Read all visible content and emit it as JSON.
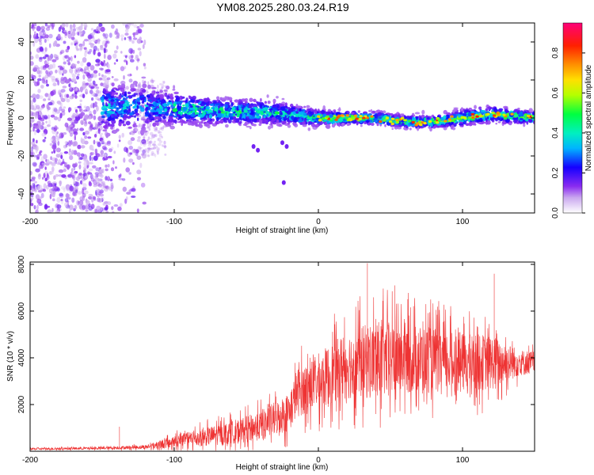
{
  "chart_data": [
    {
      "type": "heatmap",
      "title": "YM08.2025.280.03.24.R19",
      "xlabel": "Height of straight line (km)",
      "ylabel": "Frequency (Hz)",
      "xlim": [
        -200,
        150
      ],
      "ylim": [
        -50,
        50
      ],
      "xticks": [
        -200,
        -100,
        0,
        100
      ],
      "yticks": [
        -40,
        -20,
        0,
        20,
        40
      ],
      "colorbar": {
        "label": "Normalized spectral amplitude",
        "range": [
          0,
          0.95
        ],
        "ticks": [
          0.0,
          0.2,
          0.4,
          0.6,
          0.8
        ],
        "colors": [
          "#ffffff",
          "#b58be8",
          "#7a1cf5",
          "#0000ff",
          "#00c8ff",
          "#00ff66",
          "#c8ff00",
          "#ffd000",
          "#ff7f00",
          "#ff0000",
          "#ff0066"
        ]
      },
      "ridge": {
        "x": [
          -150,
          -120,
          -100,
          -80,
          -60,
          -40,
          -20,
          0,
          20,
          40,
          60,
          80,
          100,
          120,
          150
        ],
        "center": [
          6,
          6,
          5,
          4,
          3,
          3,
          2,
          0,
          0,
          0,
          -2,
          -2,
          0,
          2,
          0
        ],
        "halfwidth": [
          12,
          10,
          8,
          7,
          6,
          6,
          5,
          4,
          3,
          3,
          3,
          3,
          4,
          4,
          3
        ]
      }
    },
    {
      "type": "line",
      "xlabel": "Height of straight line (km)",
      "ylabel": "SNR (10 * v/v)",
      "xlim": [
        -200,
        150
      ],
      "ylim": [
        0,
        8100
      ],
      "xticks": [
        -200,
        -100,
        0,
        100
      ],
      "yticks": [
        2000,
        4000,
        6000,
        8000
      ],
      "color": "#ee3333",
      "envelope": {
        "x": [
          -200,
          -150,
          -120,
          -100,
          -80,
          -60,
          -40,
          -20,
          -15,
          0,
          20,
          40,
          60,
          80,
          100,
          120,
          140,
          150
        ],
        "mean": [
          100,
          130,
          180,
          400,
          600,
          800,
          1100,
          1700,
          2500,
          3000,
          3700,
          3900,
          4000,
          3900,
          3800,
          3800,
          3800,
          3800
        ],
        "amp": [
          60,
          80,
          120,
          400,
          550,
          700,
          900,
          1200,
          1500,
          1700,
          2100,
          2400,
          2200,
          2000,
          1800,
          1700,
          800,
          700
        ]
      },
      "peaks": [
        {
          "x": -138,
          "y": 1050
        },
        {
          "x": 34,
          "y": 8050
        },
        {
          "x": 53,
          "y": 7100
        },
        {
          "x": 122,
          "y": 7600
        }
      ]
    }
  ]
}
